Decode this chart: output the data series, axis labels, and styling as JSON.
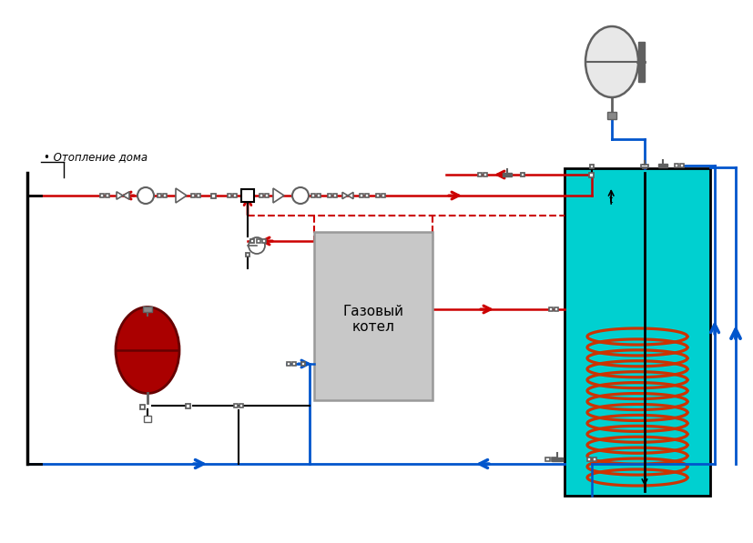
{
  "bg_color": "#ffffff",
  "red_color": "#cc0000",
  "blue_color": "#0055cc",
  "tank_fill": "#00d0d0",
  "coil_color": "#cc3300",
  "gray_fill": "#c8c8c8",
  "gray_border": "#999999",
  "dark_gray": "#606060",
  "label_heating": "Отопление дома",
  "label_boiler": "Газовый\nкотел",
  "figsize": [
    8.28,
    5.97
  ],
  "dpi": 100
}
